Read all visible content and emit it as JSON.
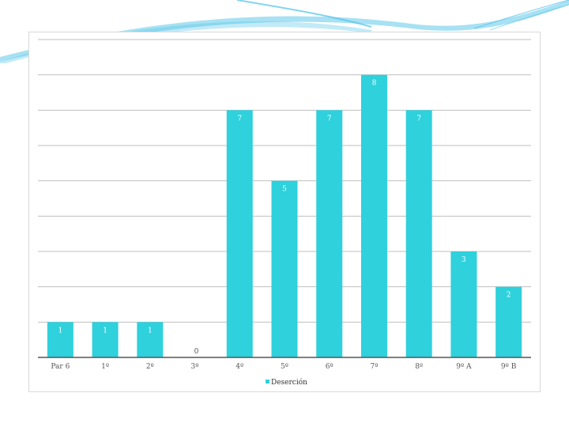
{
  "chart_data": {
    "type": "bar",
    "categories": [
      "Par 6",
      "1º",
      "2º",
      "3º",
      "4º",
      "5º",
      "6º",
      "7º",
      "8º",
      "9º A",
      "9º B"
    ],
    "series": [
      {
        "name": "Deserción",
        "values": [
          1,
          1,
          1,
          0,
          7,
          5,
          7,
          8,
          7,
          3,
          2
        ]
      }
    ],
    "ylim": [
      0,
      9
    ],
    "grid": true,
    "legend": "bottom",
    "title": "",
    "xlabel": "",
    "ylabel": "",
    "bar_color": "#2ED1DC"
  },
  "theme": {
    "accent": "#2ED1DC",
    "decor": "#4FC3E8"
  }
}
